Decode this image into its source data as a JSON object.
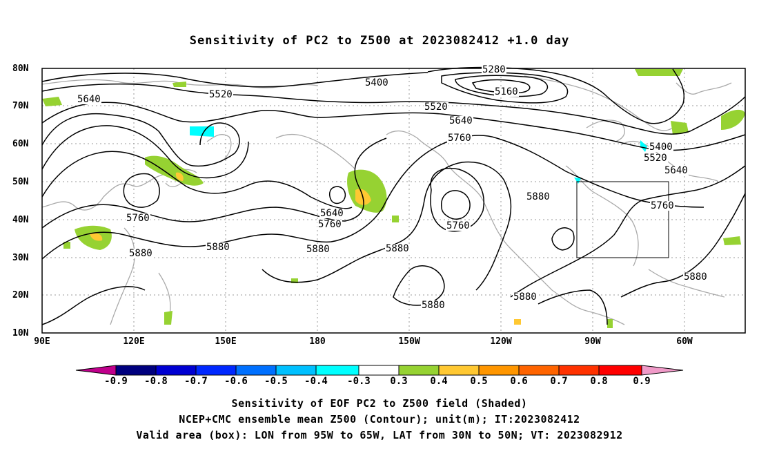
{
  "title": "Sensitivity of PC2 to Z500 at 2023082412 +1.0 day",
  "lat_labels": [
    "80N",
    "70N",
    "60N",
    "50N",
    "40N",
    "30N",
    "20N",
    "10N"
  ],
  "lon_labels": [
    "90E",
    "120E",
    "150E",
    "180",
    "150W",
    "120W",
    "90W",
    "60W"
  ],
  "contour_labels": [
    "5400",
    "5280",
    "5160",
    "5640",
    "5520",
    "5520",
    "5640",
    "5760",
    "5400",
    "5520",
    "5640",
    "5640",
    "5760",
    "5760",
    "5880",
    "5760",
    "5760",
    "5880",
    "5880",
    "5880",
    "5880",
    "5880",
    "5880",
    "5880"
  ],
  "colorbar": {
    "labels": [
      "-0.9",
      "-0.8",
      "-0.7",
      "-0.6",
      "-0.5",
      "-0.4",
      "-0.3",
      "0.3",
      "0.4",
      "0.5",
      "0.6",
      "0.7",
      "0.8",
      "0.9"
    ],
    "colors": [
      "#c0008c",
      "#00007e",
      "#0000d2",
      "#0028ff",
      "#0070ff",
      "#00c0ff",
      "#00ffff",
      "#ffffff",
      "#96d232",
      "#ffc832",
      "#ff9600",
      "#ff6400",
      "#ff3200",
      "#ff0000",
      "#f09ac8"
    ]
  },
  "box": {
    "label_lon": "95W to 65W",
    "label_lat": "30N to 50N"
  },
  "captions": [
    "Sensitivity of EOF PC2 to Z500 field (Shaded)",
    "NCEP+CMC ensemble mean Z500 (Contour); unit(m); IT:2023082412",
    "Valid area (box): LON from 95W to 65W, LAT from 30N to 50N; VT: 2023082912"
  ]
}
